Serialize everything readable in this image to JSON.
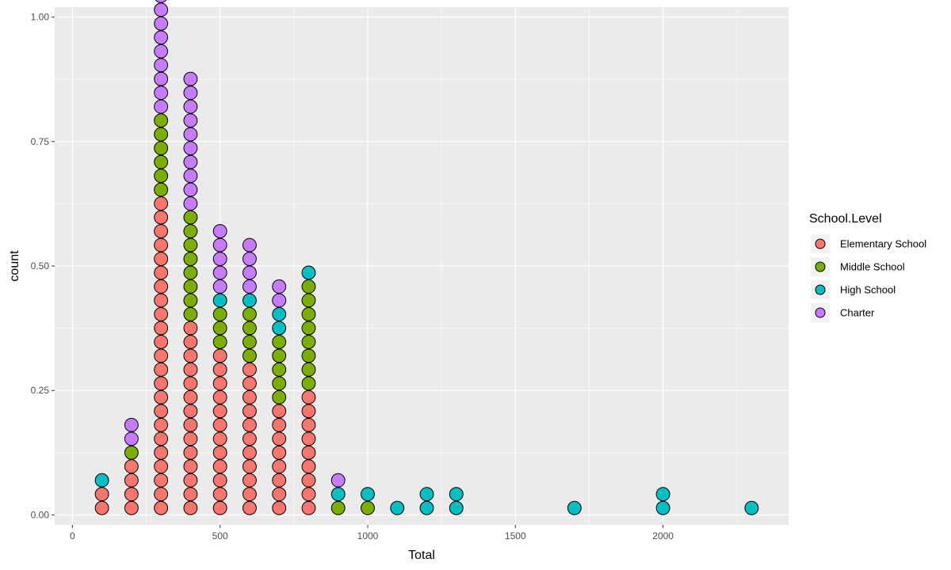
{
  "chart_data": {
    "type": "scatter",
    "subtype": "dotplot",
    "xlabel": "Total",
    "ylabel": "count",
    "xlim": [
      -60,
      2425
    ],
    "ylim": [
      -0.02,
      1.02
    ],
    "x_ticks": [
      0,
      500,
      1000,
      1500,
      2000
    ],
    "x_tick_labels": [
      "0",
      "500",
      "1000",
      "1500",
      "2000"
    ],
    "y_ticks": [
      0,
      0.25,
      0.5,
      0.75,
      1
    ],
    "y_tick_labels": [
      "0.00",
      "0.25",
      "0.50",
      "0.75",
      "1.00"
    ],
    "grid": true,
    "background": "#ebebeb",
    "legend": {
      "title": "School.Level",
      "position": "right",
      "entries": [
        "Elementary School",
        "Middle School",
        "High School",
        "Charter"
      ]
    },
    "colors": {
      "Elementary School": "#f8766d",
      "Middle School": "#7cae00",
      "High School": "#00bfc4",
      "Charter": "#c77cff"
    },
    "stack_unit": 0.0278,
    "stacks": [
      {
        "x": 100,
        "counts": {
          "Elementary School": 2,
          "Middle School": 0,
          "High School": 1,
          "Charter": 0
        }
      },
      {
        "x": 200,
        "counts": {
          "Elementary School": 4,
          "Middle School": 1,
          "High School": 0,
          "Charter": 2
        }
      },
      {
        "x": 300,
        "counts": {
          "Elementary School": 23,
          "Middle School": 6,
          "High School": 0,
          "Charter": 9
        }
      },
      {
        "x": 400,
        "counts": {
          "Elementary School": 14,
          "Middle School": 8,
          "High School": 0,
          "Charter": 10
        }
      },
      {
        "x": 500,
        "counts": {
          "Elementary School": 12,
          "Middle School": 3,
          "High School": 1,
          "Charter": 5
        }
      },
      {
        "x": 600,
        "counts": {
          "Elementary School": 11,
          "Middle School": 4,
          "High School": 1,
          "Charter": 4
        }
      },
      {
        "x": 700,
        "counts": {
          "Elementary School": 8,
          "Middle School": 5,
          "High School": 2,
          "Charter": 2
        }
      },
      {
        "x": 800,
        "counts": {
          "Elementary School": 9,
          "Middle School": 8,
          "High School": 1,
          "Charter": 0
        }
      },
      {
        "x": 900,
        "counts": {
          "Elementary School": 0,
          "Middle School": 1,
          "High School": 1,
          "Charter": 1
        }
      },
      {
        "x": 1000,
        "counts": {
          "Elementary School": 0,
          "Middle School": 1,
          "High School": 1,
          "Charter": 0
        }
      },
      {
        "x": 1100,
        "counts": {
          "Elementary School": 0,
          "Middle School": 0,
          "High School": 1,
          "Charter": 0
        }
      },
      {
        "x": 1200,
        "counts": {
          "Elementary School": 0,
          "Middle School": 0,
          "High School": 2,
          "Charter": 0
        }
      },
      {
        "x": 1300,
        "counts": {
          "Elementary School": 0,
          "Middle School": 0,
          "High School": 2,
          "Charter": 0
        }
      },
      {
        "x": 1700,
        "counts": {
          "Elementary School": 0,
          "Middle School": 0,
          "High School": 1,
          "Charter": 0
        }
      },
      {
        "x": 2000,
        "counts": {
          "Elementary School": 0,
          "Middle School": 0,
          "High School": 2,
          "Charter": 0
        }
      },
      {
        "x": 2300,
        "counts": {
          "Elementary School": 0,
          "Middle School": 0,
          "High School": 1,
          "Charter": 0
        }
      }
    ]
  }
}
